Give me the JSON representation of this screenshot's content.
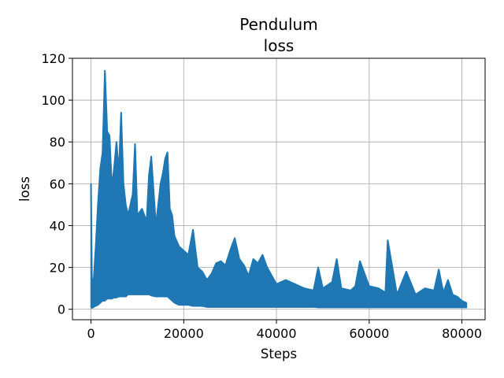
{
  "chart_data": {
    "type": "line",
    "title_lines": [
      "Pendulum",
      "loss"
    ],
    "xlabel": "Steps",
    "ylabel": "loss",
    "xlim": [
      -4000,
      85000
    ],
    "ylim": [
      -5,
      120
    ],
    "xticks": [
      0,
      20000,
      40000,
      60000,
      80000
    ],
    "yticks": [
      0,
      20,
      40,
      60,
      80,
      100,
      120
    ],
    "grid": true,
    "series": [
      {
        "color": "#1f77b4",
        "envelope": {
          "x": [
            0,
            200,
            600,
            1000,
            1500,
            2000,
            2500,
            3000,
            3500,
            4000,
            4500,
            5000,
            5500,
            6000,
            6500,
            7000,
            7500,
            8000,
            9000,
            9500,
            10000,
            11000,
            12000,
            12500,
            13000,
            14000,
            15000,
            15500,
            16000,
            16500,
            17000,
            17500,
            18000,
            19000,
            20000,
            21000,
            22000,
            23000,
            24000,
            25000,
            26000,
            27000,
            28000,
            29000,
            30000,
            31000,
            32000,
            33000,
            34000,
            35000,
            36000,
            37000,
            38000,
            39000,
            40000,
            42000,
            44000,
            46000,
            48000,
            49000,
            50000,
            52000,
            53000,
            54000,
            56000,
            57000,
            58000,
            60000,
            62000,
            63500,
            64000,
            66000,
            68000,
            70000,
            72000,
            74000,
            75000,
            76000,
            77000,
            78000,
            79000,
            80000,
            81000
          ],
          "upper": [
            60,
            12,
            15,
            29,
            50,
            67,
            75,
            114,
            85,
            83,
            58,
            68,
            80,
            65,
            94,
            60,
            50,
            45,
            55,
            79,
            45,
            48,
            42,
            64,
            73,
            40,
            60,
            65,
            72,
            75,
            48,
            45,
            35,
            30,
            28,
            26,
            38,
            20,
            18,
            14,
            17,
            22,
            23,
            21,
            28,
            34,
            24,
            21,
            16,
            24,
            22,
            26,
            20,
            16,
            12,
            14,
            12,
            10,
            9,
            20,
            10,
            13,
            24,
            10,
            9,
            11,
            23,
            11,
            10,
            8,
            33,
            7,
            18,
            7,
            10,
            9,
            19,
            8,
            14,
            7,
            6,
            4,
            3
          ],
          "lower": [
            1,
            0.5,
            1,
            1.5,
            2,
            3,
            4,
            4,
            5,
            5,
            5,
            5.5,
            5.5,
            6,
            6,
            6,
            6,
            7,
            7,
            7,
            7,
            7,
            7,
            7,
            6.5,
            6,
            6,
            6,
            6,
            6,
            5,
            4,
            3,
            2,
            2,
            2,
            1.5,
            1.5,
            1.5,
            1,
            1,
            1,
            1,
            1,
            1,
            1,
            1,
            1,
            1,
            1,
            1,
            1,
            1,
            1,
            1,
            1,
            1,
            1,
            1,
            0.8,
            0.8,
            0.8,
            0.8,
            0.8,
            0.8,
            0.8,
            0.8,
            0.8,
            0.8,
            0.8,
            0.8,
            0.8,
            0.8,
            0.8,
            0.8,
            0.8,
            0.8,
            0.8,
            0.8,
            0.8,
            0.8,
            0.8,
            0.8
          ]
        }
      }
    ]
  }
}
